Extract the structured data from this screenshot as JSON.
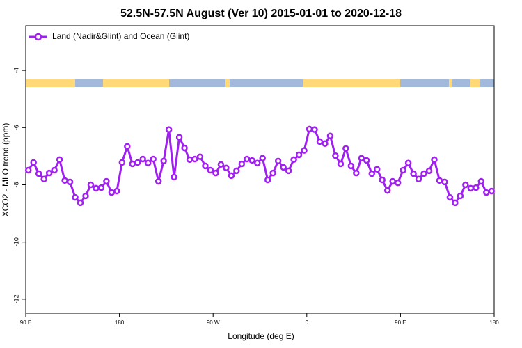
{
  "chart_data": {
    "type": "line",
    "title": "52.5N-57.5N August (Ver 10)   2015-01-01 to 2020-12-18",
    "x_label": "Longitude (deg E)",
    "y_label": "XCO2 - MLO trend (ppm)",
    "legend_position": "top-left",
    "x": [
      92.5,
      97.5,
      102.5,
      107.5,
      112.5,
      117.5,
      122.5,
      127.5,
      132.5,
      137.5,
      142.5,
      147.5,
      152.5,
      157.5,
      162.5,
      167.5,
      172.5,
      177.5,
      182.5,
      187.5,
      192.5,
      197.5,
      202.5,
      207.5,
      212.5,
      217.5,
      222.5,
      227.5,
      232.5,
      237.5,
      242.5,
      247.5,
      252.5,
      257.5,
      262.5,
      267.5,
      272.5,
      277.5,
      282.5,
      287.5,
      292.5,
      297.5,
      302.5,
      307.5,
      312.5,
      317.5,
      322.5,
      327.5,
      332.5,
      337.5,
      342.5,
      347.5,
      352.5,
      357.5,
      362.5,
      367.5,
      372.5,
      377.5,
      382.5,
      387.5,
      392.5,
      397.5,
      402.5,
      407.5,
      412.5,
      417.5,
      422.5,
      427.5,
      432.5,
      437.5,
      442.5,
      447.5,
      452.5,
      457.5,
      462.5,
      467.5,
      472.5,
      477.5,
      482.5,
      487.5,
      492.5,
      497.5,
      502.5,
      507.5,
      512.5,
      517.5,
      522.5,
      527.5,
      532.5,
      537.5
    ],
    "series": [
      {
        "name": "Land (Nadir&Glint) and Ocean (Glint)",
        "color": "#a020f0",
        "values": [
          -7.49,
          -7.22,
          -7.61,
          -7.8,
          -7.59,
          -7.49,
          -7.12,
          -7.85,
          -7.9,
          -8.44,
          -8.63,
          -8.39,
          -8.0,
          -8.12,
          -8.1,
          -7.88,
          -8.27,
          -8.22,
          -7.22,
          -6.66,
          -7.27,
          -7.22,
          -7.1,
          -7.24,
          -7.1,
          -7.88,
          -7.17,
          -6.07,
          -7.73,
          -6.34,
          -6.71,
          -7.12,
          -7.1,
          -7.02,
          -7.34,
          -7.49,
          -7.59,
          -7.29,
          -7.41,
          -7.68,
          -7.51,
          -7.27,
          -7.1,
          -7.15,
          -7.24,
          -7.07,
          -7.83,
          -7.59,
          -7.17,
          -7.39,
          -7.51,
          -7.12,
          -6.95,
          -6.8,
          -6.05,
          -6.07,
          -6.49,
          -6.56,
          -6.29,
          -6.98,
          -7.27,
          -6.73,
          -7.34,
          -7.59,
          -7.07,
          -7.15,
          -7.61,
          -7.46,
          -7.83,
          -8.2,
          -7.88,
          -7.93,
          -7.49,
          -7.24,
          -7.61,
          -7.8,
          -7.61,
          -7.51,
          -7.12,
          -7.85,
          -7.9,
          -8.44,
          -8.63,
          -8.39,
          -8.0,
          -8.12,
          -8.1,
          -7.88,
          -8.27,
          -8.22
        ]
      }
    ],
    "xlim": [
      90,
      540
    ],
    "xticks": [
      {
        "value": 90,
        "label": "90 E"
      },
      180,
      {
        "value": 270,
        "label": "90 W"
      },
      {
        "value": 360,
        "label": "0"
      },
      {
        "value": 450,
        "label": "90 E"
      },
      {
        "value": 540,
        "label": "180"
      }
    ],
    "ylim": [
      -12.49,
      -2.44
    ],
    "yticks": [
      -12,
      -10,
      -8,
      -6,
      -4
    ]
  }
}
